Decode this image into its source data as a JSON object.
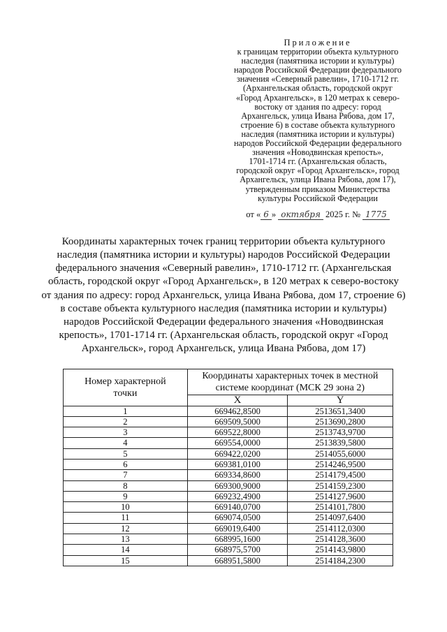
{
  "appendix": {
    "heading": "Приложение",
    "lines": [
      "к границам территории объекта культурного",
      "наследия (памятника истории и культуры)",
      "народов Российской Федерации федерального",
      "значения «Северный равелин», 1710-1712 гг.",
      "(Архангельская область, городской округ",
      "«Город Архангельск», в 120 метрах к северо-",
      "востоку от здания по адресу: город",
      "Архангельск, улица Ивана Рябова, дом 17,",
      "строение 6) в составе объекта культурного",
      "наследия (памятника истории и культуры)",
      "народов Российской Федерации федерального",
      "значения «Новодвинская крепость»,",
      "1701-1714 гг. (Архангельская область,",
      "городской округ «Город Архангельск», город",
      "Архангельск, улица Ивана Рябова, дом 17),",
      "утвержденным приказом Министерства",
      "культуры Российской Федерации"
    ]
  },
  "order": {
    "prefix": "от «",
    "day": "6",
    "mid": "»",
    "month": "октября",
    "year": "2025 г. №",
    "number": "1775"
  },
  "title_lines": [
    "Координаты характерных точек границ территории объекта культурного",
    "наследия (памятника истории и культуры) народов Российской Федерации",
    "федерального значения «Северный равелин», 1710-1712 гг. (Архангельская",
    "область, городской округ «Город Архангельск», в 120 метрах к северо-востоку",
    "от здания по адресу: город Архангельск, улица Ивана Рябова, дом 17, строение 6)",
    "в составе объекта культурного наследия (памятника истории и культуры)",
    "народов Российской Федерации федерального значения «Новодвинская",
    "крепость», 1701-1714 гг. (Архангельская область, городской округ «Город",
    "Архангельск», город Архангельск, улица Ивана Рябова, дом 17)"
  ],
  "table": {
    "col_number": "Номер характерной точки",
    "col_coords": "Координаты характерных точек в местной системе координат (МСК 29 зона 2)",
    "col_x": "X",
    "col_y": "Y",
    "rows": [
      [
        "1",
        "669462,8500",
        "2513651,3400"
      ],
      [
        "2",
        "669509,5000",
        "2513690,2800"
      ],
      [
        "3",
        "669522,8000",
        "2513743,9700"
      ],
      [
        "4",
        "669554,0000",
        "2513839,5800"
      ],
      [
        "5",
        "669422,0200",
        "2514055,6000"
      ],
      [
        "6",
        "669381,0100",
        "2514246,9500"
      ],
      [
        "7",
        "669334,8600",
        "2514179,4500"
      ],
      [
        "8",
        "669300,9000",
        "2514159,2300"
      ],
      [
        "9",
        "669232,4900",
        "2514127,9600"
      ],
      [
        "10",
        "669140,0700",
        "2514101,7800"
      ],
      [
        "11",
        "669074,0500",
        "2514097,6400"
      ],
      [
        "12",
        "669019,6400",
        "2514112,0300"
      ],
      [
        "13",
        "668995,1600",
        "2514128,3600"
      ],
      [
        "14",
        "668975,5700",
        "2514143,9800"
      ],
      [
        "15",
        "668951,5800",
        "2514184,2300"
      ]
    ]
  }
}
